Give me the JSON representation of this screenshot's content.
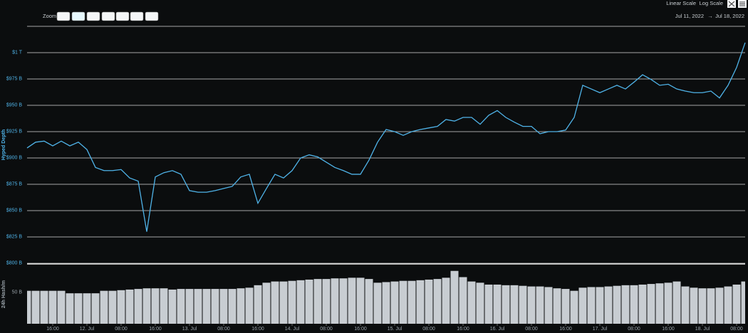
{
  "toolbar": {
    "zoom_label": "Zoom",
    "scale_options": [
      "Linear Scale",
      "Log Scale"
    ],
    "date_from": "Jul 11, 2022",
    "date_to": "Jul 18, 2022"
  },
  "chart_data": [
    {
      "type": "line",
      "y_label": "Hyped Depth",
      "color": "#4fb3e8",
      "values": [
        909.5,
        915,
        916,
        911.5,
        916,
        911.5,
        915,
        908,
        891,
        888,
        888,
        889,
        881,
        878,
        830,
        882,
        886,
        888,
        884.5,
        869,
        867.5,
        867.5,
        869,
        871,
        873,
        882,
        884.5,
        857,
        871,
        884.5,
        881,
        888,
        900,
        903,
        901,
        896,
        891,
        888,
        884.5,
        884.5,
        898,
        915,
        927,
        925,
        921.5,
        925,
        927,
        928.5,
        930,
        936.5,
        935,
        938.5,
        938.5,
        932,
        940.5,
        945,
        938.5,
        934,
        930,
        930,
        923,
        925,
        925,
        926.5,
        938.5,
        969,
        965.5,
        962,
        965.5,
        969,
        965.5,
        972,
        979,
        974.5,
        969,
        970,
        965.5,
        963.5,
        962,
        962,
        963.5,
        957,
        969,
        986,
        1009.5
      ],
      "ylim": [
        800,
        1025
      ],
      "yticks": [
        {
          "value": 800,
          "label": "$800 B"
        },
        {
          "value": 825,
          "label": "$825 B"
        },
        {
          "value": 850,
          "label": "$850 B"
        },
        {
          "value": 875,
          "label": "$875 B"
        },
        {
          "value": 900,
          "label": "$900 B"
        },
        {
          "value": 925,
          "label": "$925 B"
        },
        {
          "value": 950,
          "label": "$950 B"
        },
        {
          "value": 975,
          "label": "$975 B"
        },
        {
          "value": 1000,
          "label": "$1 T"
        }
      ],
      "grid": true
    },
    {
      "type": "bar",
      "y_label": "24h Hash/m",
      "color": "#c8cdd2",
      "values": [
        53,
        53,
        53,
        53,
        53,
        49,
        49,
        49,
        49,
        53,
        53,
        54,
        55,
        56,
        57,
        57,
        57,
        55,
        56,
        56,
        56,
        56,
        56,
        56,
        56,
        57,
        58,
        62,
        66,
        68,
        68,
        69,
        70,
        71,
        72,
        72,
        73,
        73,
        74,
        74,
        72,
        66,
        67,
        68,
        69,
        69,
        70,
        71,
        72,
        74,
        85,
        75,
        68,
        66,
        63,
        63,
        62,
        62,
        61,
        60,
        60,
        59,
        57,
        56,
        53,
        58,
        59,
        59,
        60,
        61,
        62,
        62,
        63,
        64,
        65,
        66,
        68,
        60,
        58,
        57,
        57,
        58,
        60,
        63,
        68
      ],
      "ylim": [
        0,
        95
      ],
      "yticks": [
        {
          "value": 50,
          "label": "50 B"
        }
      ],
      "xticks": [
        {
          "value": 3,
          "label": "16:00"
        },
        {
          "value": 7,
          "label": "12. Jul"
        },
        {
          "value": 11,
          "label": "08:00"
        },
        {
          "value": 15,
          "label": "16:00"
        },
        {
          "value": 19,
          "label": "13. Jul"
        },
        {
          "value": 23,
          "label": "08:00"
        },
        {
          "value": 27,
          "label": "16:00"
        },
        {
          "value": 31,
          "label": "14. Jul"
        },
        {
          "value": 35,
          "label": "08:00"
        },
        {
          "value": 39,
          "label": "16:00"
        },
        {
          "value": 43,
          "label": "15. Jul"
        },
        {
          "value": 47,
          "label": "08:00"
        },
        {
          "value": 51,
          "label": "16:00"
        },
        {
          "value": 55,
          "label": "16. Jul"
        },
        {
          "value": 59,
          "label": "08:00"
        },
        {
          "value": 63,
          "label": "16:00"
        },
        {
          "value": 67,
          "label": "17. Jul"
        },
        {
          "value": 71,
          "label": "08:00"
        },
        {
          "value": 75,
          "label": "16:00"
        },
        {
          "value": 79,
          "label": "18. Jul"
        },
        {
          "value": 83,
          "label": "08:00"
        }
      ]
    }
  ]
}
